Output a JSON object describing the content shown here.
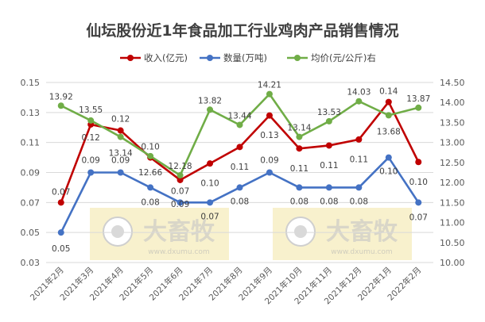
{
  "chart_data": {
    "type": "line",
    "title": "仙坛股份近1年食品加工行业鸡肉产品销售情况",
    "categories": [
      "2021年2月",
      "2021年3月",
      "2021年4月",
      "2021年5月",
      "2021年6月",
      "2021年7月",
      "2021年8月",
      "2021年9月",
      "2021年10月",
      "2021年11月",
      "2021年12月",
      "2022年1月",
      "2022年2月"
    ],
    "left_axis": {
      "ylim": [
        0.03,
        0.15
      ],
      "ticks": [
        "0.03",
        "0.05",
        "0.07",
        "0.09",
        "0.11",
        "0.13",
        "0.15"
      ]
    },
    "right_axis": {
      "ylim": [
        10.0,
        14.5
      ],
      "ticks": [
        "10.00",
        "10.50",
        "11.00",
        "11.50",
        "12.00",
        "12.50",
        "13.00",
        "13.50",
        "14.00",
        "14.50"
      ]
    },
    "legend_position": "top",
    "grid": "horizontal",
    "series": [
      {
        "name": "收入(亿元)",
        "axis": "left",
        "color": "#c00000",
        "values": [
          0.07,
          0.122,
          0.118,
          0.1,
          0.085,
          0.096,
          0.107,
          0.128,
          0.106,
          0.108,
          0.112,
          0.137,
          0.097
        ],
        "labels": [
          "0.07",
          "0.12",
          "0.12",
          "0.10",
          "0.09",
          "0.10",
          "0.11",
          "0.13",
          "0.11",
          "0.11",
          "0.11",
          "0.14",
          "0.10"
        ]
      },
      {
        "name": "数量(万吨)",
        "axis": "left",
        "color": "#4472c4",
        "values": [
          0.05,
          0.09,
          0.09,
          0.08,
          0.07,
          0.07,
          0.08,
          0.09,
          0.08,
          0.08,
          0.08,
          0.1,
          0.07
        ],
        "labels": [
          "0.05",
          "0.09",
          "0.09",
          "0.08",
          "0.07",
          "0.07",
          "0.08",
          "0.09",
          "0.08",
          "0.08",
          "0.08",
          "0.10",
          "0.07"
        ]
      },
      {
        "name": "均价(元/公斤)右",
        "axis": "right",
        "color": "#70ad47",
        "values": [
          13.92,
          13.55,
          13.14,
          12.66,
          12.18,
          13.82,
          13.44,
          14.21,
          13.14,
          13.53,
          14.03,
          13.68,
          13.87
        ],
        "labels": [
          "13.92",
          "13.55",
          "13.14",
          "12.66",
          "12.18",
          "13.82",
          "13.44",
          "14.21",
          "13.14",
          "13.53",
          "14.03",
          "13.68",
          "13.87"
        ]
      }
    ],
    "watermark": {
      "text": "大畜牧",
      "subtext": "www.dxumu.com"
    }
  }
}
